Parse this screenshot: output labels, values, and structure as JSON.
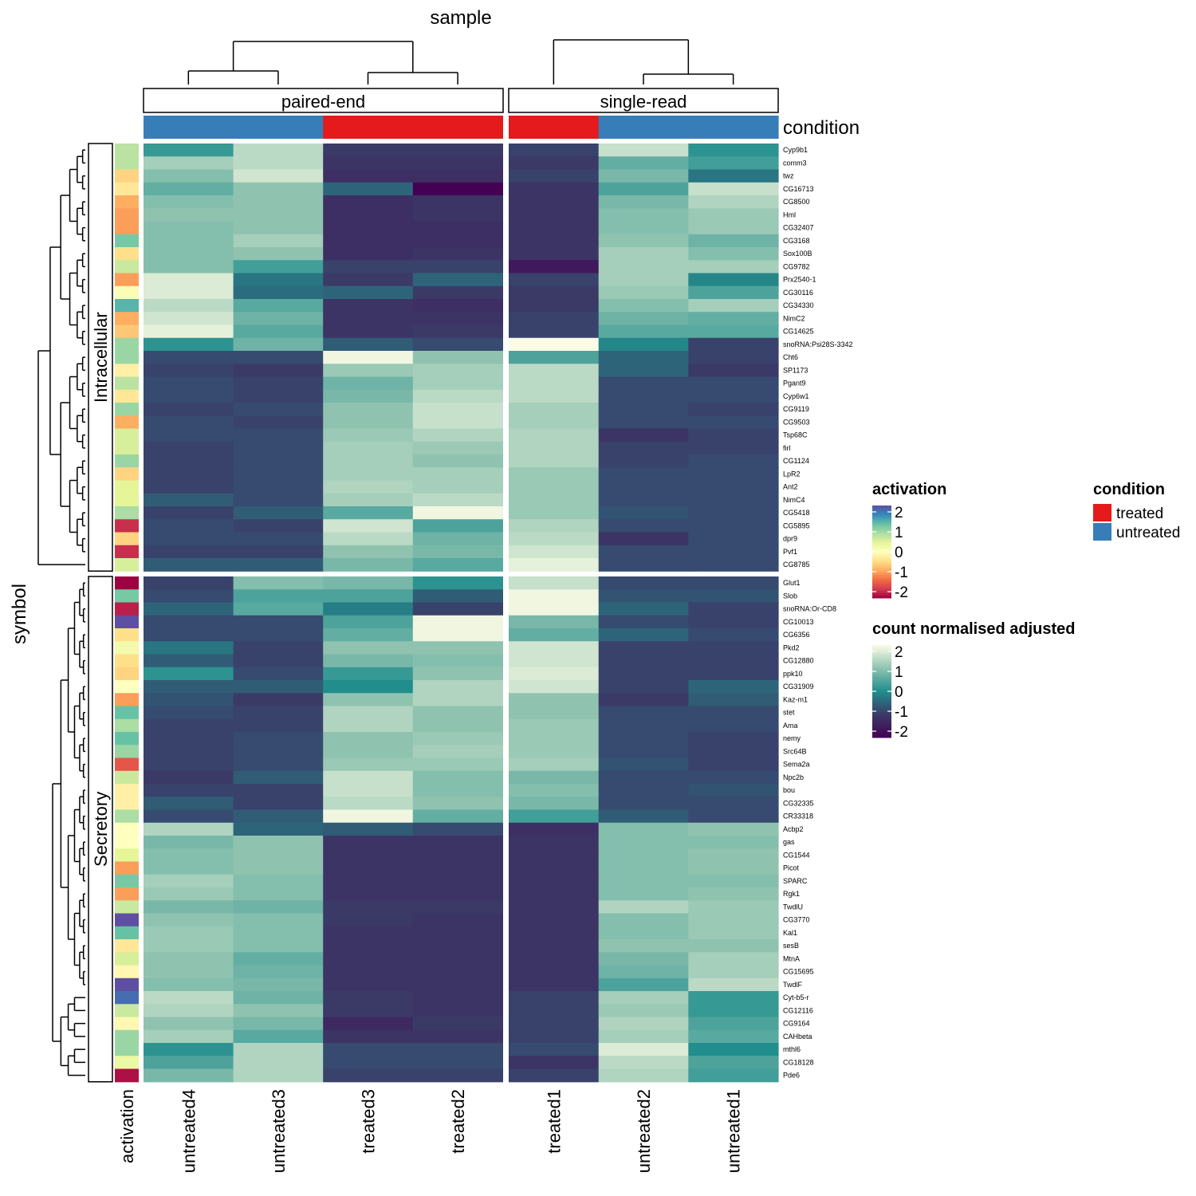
{
  "chart_data": {
    "type": "heatmap",
    "title": "sample",
    "ylabel": "symbol",
    "column_splits": [
      "paired-end",
      "single-read"
    ],
    "row_splits": [
      "Intracellular",
      "Secretory"
    ],
    "condition_label": "condition",
    "activation_label": "activation",
    "columns": [
      {
        "name": "untreated4",
        "condition": "untreated",
        "split": "paired-end"
      },
      {
        "name": "untreated3",
        "condition": "untreated",
        "split": "paired-end"
      },
      {
        "name": "treated3",
        "condition": "treated",
        "split": "paired-end"
      },
      {
        "name": "treated2",
        "condition": "treated",
        "split": "paired-end"
      },
      {
        "name": "treated1",
        "condition": "treated",
        "split": "single-read"
      },
      {
        "name": "untreated2",
        "condition": "untreated",
        "split": "single-read"
      },
      {
        "name": "untreated1",
        "condition": "untreated",
        "split": "single-read"
      }
    ],
    "rows": [
      {
        "symbol": "Cyp9b1",
        "group": "Intracellular",
        "activation": 0.7,
        "values": [
          0.2,
          1.4,
          -1.0,
          -1.0,
          -0.9,
          1.5,
          0.1
        ]
      },
      {
        "symbol": "comm3",
        "group": "Intracellular",
        "activation": 0.7,
        "values": [
          1.2,
          1.4,
          -1.1,
          -1.1,
          -1.0,
          0.6,
          0.3
        ]
      },
      {
        "symbol": "twz",
        "group": "Intracellular",
        "activation": -0.5,
        "values": [
          0.9,
          1.6,
          -1.2,
          -1.2,
          -0.9,
          0.8,
          -0.3
        ]
      },
      {
        "symbol": "CG16713",
        "group": "Intracellular",
        "activation": -0.3,
        "values": [
          0.6,
          1.0,
          -0.5,
          -2.2,
          -1.1,
          0.4,
          1.5
        ]
      },
      {
        "symbol": "CG8500",
        "group": "Intracellular",
        "activation": -0.8,
        "values": [
          0.9,
          1.0,
          -1.2,
          -1.1,
          -1.1,
          0.8,
          1.3
        ]
      },
      {
        "symbol": "Hml",
        "group": "Intracellular",
        "activation": -0.9,
        "values": [
          1.0,
          1.0,
          -1.2,
          -1.1,
          -1.1,
          0.9,
          1.1
        ]
      },
      {
        "symbol": "CG32407",
        "group": "Intracellular",
        "activation": -0.9,
        "values": [
          0.9,
          1.0,
          -1.2,
          -1.2,
          -1.1,
          0.9,
          1.1
        ]
      },
      {
        "symbol": "CG3168",
        "group": "Intracellular",
        "activation": 1.1,
        "values": [
          0.9,
          1.2,
          -1.2,
          -1.2,
          -1.1,
          1.0,
          0.7
        ]
      },
      {
        "symbol": "Sox100B",
        "group": "Intracellular",
        "activation": -0.4,
        "values": [
          0.9,
          1.0,
          -1.2,
          -1.1,
          -1.1,
          1.2,
          0.9
        ]
      },
      {
        "symbol": "CG9782",
        "group": "Intracellular",
        "activation": 0.6,
        "values": [
          0.9,
          0.3,
          -0.9,
          -0.9,
          -1.6,
          1.2,
          1.2
        ]
      },
      {
        "symbol": "Prx2540-1",
        "group": "Intracellular",
        "activation": -0.9,
        "values": [
          1.7,
          -0.3,
          -1.0,
          -0.5,
          -0.9,
          1.2,
          -0.1
        ]
      },
      {
        "symbol": "CG30116",
        "group": "Intracellular",
        "activation": 0.1,
        "values": [
          1.7,
          -0.4,
          -0.5,
          -1.0,
          -1.0,
          1.1,
          0.4
        ]
      },
      {
        "symbol": "CG34330",
        "group": "Intracellular",
        "activation": 1.3,
        "values": [
          1.4,
          0.5,
          -1.1,
          -1.2,
          -1.0,
          0.9,
          1.2
        ]
      },
      {
        "symbol": "NimC2",
        "group": "Intracellular",
        "activation": -0.8,
        "values": [
          1.6,
          0.7,
          -1.1,
          -1.1,
          -0.9,
          0.7,
          0.6
        ]
      },
      {
        "symbol": "CG14625",
        "group": "Intracellular",
        "activation": -0.6,
        "values": [
          1.8,
          0.5,
          -1.1,
          -1.0,
          -0.9,
          0.5,
          0.5
        ]
      },
      {
        "symbol": "snoRNA:Psi28S-3342",
        "group": "Intracellular",
        "activation": 0.9,
        "values": [
          0.1,
          0.7,
          -0.6,
          -0.8,
          2.0,
          -0.1,
          -0.9
        ]
      },
      {
        "symbol": "Cht6",
        "group": "Intracellular",
        "activation": 0.9,
        "values": [
          -0.8,
          -0.8,
          1.9,
          1.0,
          0.4,
          -0.5,
          -0.9
        ]
      },
      {
        "symbol": "SP1173",
        "group": "Intracellular",
        "activation": -0.2,
        "values": [
          -0.9,
          -1.0,
          1.1,
          1.2,
          1.4,
          -0.5,
          -1.0
        ]
      },
      {
        "symbol": "Pgant9",
        "group": "Intracellular",
        "activation": 0.7,
        "values": [
          -0.8,
          -0.9,
          0.7,
          1.2,
          1.4,
          -0.8,
          -0.8
        ]
      },
      {
        "symbol": "Cyp6w1",
        "group": "Intracellular",
        "activation": -0.3,
        "values": [
          -0.8,
          -0.9,
          0.8,
          1.4,
          1.4,
          -0.8,
          -0.8
        ]
      },
      {
        "symbol": "CG9119",
        "group": "Intracellular",
        "activation": 0.9,
        "values": [
          -0.9,
          -0.8,
          1.0,
          1.5,
          1.2,
          -0.8,
          -0.9
        ]
      },
      {
        "symbol": "CG9503",
        "group": "Intracellular",
        "activation": -0.8,
        "values": [
          -0.8,
          -0.9,
          1.0,
          1.5,
          1.2,
          -0.8,
          -0.8
        ]
      },
      {
        "symbol": "Tsp68C",
        "group": "Intracellular",
        "activation": 0.5,
        "values": [
          -0.8,
          -0.8,
          1.1,
          1.3,
          1.3,
          -1.1,
          -0.9
        ]
      },
      {
        "symbol": "firl",
        "group": "Intracellular",
        "activation": 0.5,
        "values": [
          -0.9,
          -0.8,
          1.2,
          1.1,
          1.3,
          -0.9,
          -0.9
        ]
      },
      {
        "symbol": "CG1124",
        "group": "Intracellular",
        "activation": 0.9,
        "values": [
          -0.9,
          -0.8,
          1.2,
          1.0,
          1.3,
          -0.9,
          -0.8
        ]
      },
      {
        "symbol": "LpR2",
        "group": "Intracellular",
        "activation": -0.5,
        "values": [
          -0.9,
          -0.8,
          1.2,
          1.2,
          1.1,
          -0.8,
          -0.8
        ]
      },
      {
        "symbol": "Ant2",
        "group": "Intracellular",
        "activation": 0.4,
        "values": [
          -0.9,
          -0.8,
          1.3,
          1.2,
          1.1,
          -0.8,
          -0.8
        ]
      },
      {
        "symbol": "NimC4",
        "group": "Intracellular",
        "activation": 0.4,
        "values": [
          -0.6,
          -0.8,
          1.2,
          1.4,
          1.1,
          -0.8,
          -0.8
        ]
      },
      {
        "symbol": "CG5418",
        "group": "Intracellular",
        "activation": 0.8,
        "values": [
          -0.9,
          -0.6,
          0.5,
          1.9,
          1.1,
          -0.7,
          -0.8
        ]
      },
      {
        "symbol": "CG5895",
        "group": "Intracellular",
        "activation": -1.7,
        "values": [
          -0.8,
          -0.9,
          1.6,
          0.4,
          1.3,
          -0.8,
          -0.8
        ]
      },
      {
        "symbol": "dpr9",
        "group": "Intracellular",
        "activation": -0.5,
        "values": [
          -0.8,
          -0.8,
          1.4,
          0.7,
          1.4,
          -1.1,
          -0.8
        ]
      },
      {
        "symbol": "Pvf1",
        "group": "Intracellular",
        "activation": -1.7,
        "values": [
          -0.9,
          -0.9,
          1.0,
          0.8,
          1.6,
          -0.8,
          -0.8
        ]
      },
      {
        "symbol": "CG8785",
        "group": "Intracellular",
        "activation": 0.5,
        "values": [
          -0.6,
          -0.6,
          0.8,
          0.5,
          1.8,
          -0.8,
          -0.8
        ]
      },
      {
        "symbol": "Glut1",
        "group": "Secretory",
        "activation": -2.0,
        "values": [
          -0.9,
          0.9,
          0.8,
          0.1,
          1.5,
          -0.8,
          -0.8
        ]
      },
      {
        "symbol": "Slob",
        "group": "Secretory",
        "activation": 1.1,
        "values": [
          -0.8,
          0.4,
          0.4,
          -0.6,
          1.9,
          -0.7,
          -0.7
        ]
      },
      {
        "symbol": "snoRNA:Or-CD8",
        "group": "Secretory",
        "activation": -1.8,
        "values": [
          -0.5,
          0.5,
          -0.2,
          -0.9,
          1.9,
          -0.5,
          -0.9
        ]
      },
      {
        "symbol": "CG10013",
        "group": "Secretory",
        "activation": 2.0,
        "values": [
          -0.8,
          -0.8,
          0.4,
          1.9,
          0.8,
          -0.8,
          -0.9
        ]
      },
      {
        "symbol": "CG6356",
        "group": "Secretory",
        "activation": -0.4,
        "values": [
          -0.8,
          -0.8,
          0.6,
          1.9,
          0.6,
          -0.5,
          -0.8
        ]
      },
      {
        "symbol": "Pkd2",
        "group": "Secretory",
        "activation": 0.2,
        "values": [
          -0.3,
          -0.9,
          1.0,
          1.0,
          1.6,
          -0.9,
          -0.9
        ]
      },
      {
        "symbol": "CG12880",
        "group": "Secretory",
        "activation": -0.4,
        "values": [
          -0.6,
          -0.9,
          0.8,
          0.9,
          1.6,
          -0.9,
          -0.9
        ]
      },
      {
        "symbol": "ppk10",
        "group": "Secretory",
        "activation": -0.5,
        "values": [
          0.1,
          -0.8,
          0.2,
          1.0,
          1.7,
          -0.9,
          -0.9
        ]
      },
      {
        "symbol": "CG31909",
        "group": "Secretory",
        "activation": 0.0,
        "values": [
          -0.6,
          -0.6,
          0.0,
          1.3,
          1.6,
          -0.9,
          -0.5
        ]
      },
      {
        "symbol": "Kaz-m1",
        "group": "Secretory",
        "activation": -0.9,
        "values": [
          -0.7,
          -1.0,
          1.0,
          1.3,
          1.0,
          -1.0,
          -0.6
        ]
      },
      {
        "symbol": "stet",
        "group": "Secretory",
        "activation": 1.2,
        "values": [
          -0.8,
          -0.9,
          1.3,
          1.0,
          1.0,
          -0.8,
          -0.8
        ]
      },
      {
        "symbol": "Ama",
        "group": "Secretory",
        "activation": 0.8,
        "values": [
          -0.9,
          -0.9,
          1.3,
          1.0,
          1.1,
          -0.8,
          -0.8
        ]
      },
      {
        "symbol": "nemy",
        "group": "Secretory",
        "activation": 1.2,
        "values": [
          -0.9,
          -0.8,
          1.0,
          1.1,
          1.1,
          -0.8,
          -0.9
        ]
      },
      {
        "symbol": "Src64B",
        "group": "Secretory",
        "activation": 0.9,
        "values": [
          -0.9,
          -0.8,
          1.0,
          1.2,
          1.1,
          -0.8,
          -0.9
        ]
      },
      {
        "symbol": "Sema2a",
        "group": "Secretory",
        "activation": -1.4,
        "values": [
          -0.9,
          -0.8,
          1.1,
          1.1,
          1.2,
          -0.7,
          -0.9
        ]
      },
      {
        "symbol": "Npc2b",
        "group": "Secretory",
        "activation": 0.6,
        "values": [
          -1.0,
          -0.6,
          1.5,
          0.9,
          0.8,
          -0.8,
          -0.8
        ]
      },
      {
        "symbol": "bou",
        "group": "Secretory",
        "activation": -0.2,
        "values": [
          -0.9,
          -0.9,
          1.5,
          0.9,
          0.9,
          -0.8,
          -0.7
        ]
      },
      {
        "symbol": "CG32335",
        "group": "Secretory",
        "activation": -0.2,
        "values": [
          -0.6,
          -0.9,
          1.4,
          1.0,
          0.8,
          -0.8,
          -0.8
        ]
      },
      {
        "symbol": "CR33318",
        "group": "Secretory",
        "activation": 0.8,
        "values": [
          -0.8,
          -0.6,
          1.9,
          0.6,
          0.3,
          -0.6,
          -0.8
        ]
      },
      {
        "symbol": "Acbp2",
        "group": "Secretory",
        "activation": 0.0,
        "values": [
          1.3,
          -0.5,
          -0.6,
          -0.8,
          -1.2,
          0.9,
          1.0
        ]
      },
      {
        "symbol": "gas",
        "group": "Secretory",
        "activation": 0.0,
        "values": [
          0.8,
          1.0,
          -1.1,
          -1.1,
          -1.1,
          0.9,
          0.9
        ]
      },
      {
        "symbol": "CG1544",
        "group": "Secretory",
        "activation": 0.4,
        "values": [
          0.9,
          1.0,
          -1.1,
          -1.1,
          -1.1,
          0.9,
          1.0
        ]
      },
      {
        "symbol": "Picot",
        "group": "Secretory",
        "activation": -0.9,
        "values": [
          0.9,
          1.0,
          -1.1,
          -1.1,
          -1.1,
          0.9,
          1.0
        ]
      },
      {
        "symbol": "SPARC",
        "group": "Secretory",
        "activation": 1.1,
        "values": [
          1.2,
          0.9,
          -1.1,
          -1.1,
          -1.1,
          0.9,
          0.9
        ]
      },
      {
        "symbol": "Rgk1",
        "group": "Secretory",
        "activation": -0.9,
        "values": [
          1.1,
          0.9,
          -1.1,
          -1.1,
          -1.1,
          0.9,
          1.0
        ]
      },
      {
        "symbol": "TwdlU",
        "group": "Secretory",
        "activation": 0.6,
        "values": [
          0.8,
          0.7,
          -1.0,
          -1.0,
          -1.1,
          1.3,
          1.1
        ]
      },
      {
        "symbol": "CG3770",
        "group": "Secretory",
        "activation": 2.0,
        "values": [
          1.0,
          0.9,
          -1.0,
          -1.1,
          -1.1,
          0.9,
          1.1
        ]
      },
      {
        "symbol": "Kal1",
        "group": "Secretory",
        "activation": 1.2,
        "values": [
          1.1,
          0.9,
          -1.1,
          -1.1,
          -1.1,
          0.9,
          1.1
        ]
      },
      {
        "symbol": "sesB",
        "group": "Secretory",
        "activation": -0.3,
        "values": [
          1.1,
          0.9,
          -1.1,
          -1.1,
          -1.1,
          1.0,
          1.0
        ]
      },
      {
        "symbol": "MtnA",
        "group": "Secretory",
        "activation": 0.5,
        "values": [
          1.0,
          0.6,
          -1.1,
          -1.1,
          -1.1,
          0.8,
          1.2
        ]
      },
      {
        "symbol": "CG15695",
        "group": "Secretory",
        "activation": -0.1,
        "values": [
          1.0,
          0.7,
          -1.1,
          -1.1,
          -1.1,
          0.7,
          1.2
        ]
      },
      {
        "symbol": "TwdlF",
        "group": "Secretory",
        "activation": 2.0,
        "values": [
          0.9,
          0.8,
          -1.1,
          -1.1,
          -1.1,
          0.4,
          1.4
        ]
      },
      {
        "symbol": "Cyt-b5-r",
        "group": "Secretory",
        "activation": 1.8,
        "values": [
          1.4,
          0.7,
          -1.0,
          -1.1,
          -0.9,
          1.2,
          0.2
        ]
      },
      {
        "symbol": "CG12116",
        "group": "Secretory",
        "activation": 0.6,
        "values": [
          1.3,
          1.0,
          -1.0,
          -1.1,
          -0.9,
          1.1,
          0.2
        ]
      },
      {
        "symbol": "CG9164",
        "group": "Secretory",
        "activation": -0.1,
        "values": [
          1.0,
          0.8,
          -1.3,
          -1.0,
          -0.9,
          1.3,
          0.4
        ]
      },
      {
        "symbol": "CAHbeta",
        "group": "Secretory",
        "activation": 0.9,
        "values": [
          1.2,
          0.5,
          -1.1,
          -1.1,
          -0.9,
          1.2,
          0.5
        ]
      },
      {
        "symbol": "mthl6",
        "group": "Secretory",
        "activation": 0.9,
        "values": [
          0.1,
          1.3,
          -0.8,
          -0.8,
          -0.8,
          1.7,
          0.0
        ]
      },
      {
        "symbol": "CG18128",
        "group": "Secretory",
        "activation": 0.3,
        "values": [
          0.4,
          1.3,
          -0.8,
          -0.8,
          -1.1,
          1.4,
          0.4
        ]
      },
      {
        "symbol": "Pde6",
        "group": "Secretory",
        "activation": -1.9,
        "values": [
          0.8,
          1.3,
          -0.9,
          -0.9,
          -0.9,
          1.3,
          0.3
        ]
      }
    ],
    "legends": {
      "activation": {
        "title": "activation",
        "range": [
          -2,
          2
        ],
        "ticks": [
          "2",
          "1",
          "0",
          "-1",
          "-2"
        ]
      },
      "count": {
        "title": "count normalised adjusted",
        "range": [
          -2,
          2
        ],
        "ticks": [
          "2",
          "1",
          "0",
          "-1",
          "-2"
        ]
      },
      "condition": {
        "title": "condition",
        "entries": [
          {
            "label": "treated",
            "color": "#E41A1C"
          },
          {
            "label": "untreated",
            "color": "#377EB8"
          }
        ]
      }
    },
    "colors": {
      "treated": "#E41A1C",
      "untreated": "#377EB8",
      "count_scale": [
        "#440154",
        "#3B3A67",
        "#218E8D",
        "#8FC3B0",
        "#FCFCE6"
      ],
      "activation_scale": [
        "#5E4FA2",
        "#3288BD",
        "#66C2A5",
        "#ABDDA4",
        "#E6F598",
        "#FFFFBF",
        "#FEE08B",
        "#FDAE61",
        "#F46D43",
        "#D53E4F",
        "#9E0142"
      ]
    }
  }
}
